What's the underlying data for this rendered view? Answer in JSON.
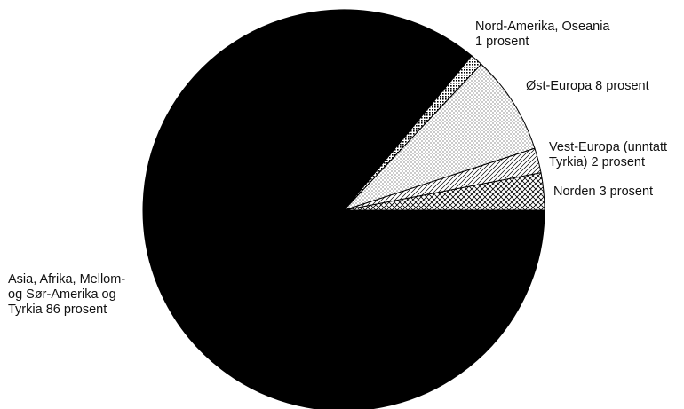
{
  "chart_data": {
    "type": "pie",
    "unit": "prosent",
    "slices": [
      {
        "name": "Norden",
        "value": 3,
        "pattern": "crosshatch",
        "label_lines": [
          "Norden 3 prosent"
        ]
      },
      {
        "name": "Vest-Europa (unntatt Tyrkia)",
        "value": 2,
        "pattern": "hatch",
        "label_lines": [
          "Vest-Europa (unntatt",
          "Tyrkia) 2 prosent"
        ]
      },
      {
        "name": "Øst-Europa",
        "value": 8,
        "pattern": "dots",
        "label_lines": [
          "Øst-Europa 8 prosent"
        ]
      },
      {
        "name": "Nord-Amerika, Oseania",
        "value": 1,
        "pattern": "dashes",
        "label_lines": [
          "Nord-Amerika, Oseania",
          "1 prosent"
        ]
      },
      {
        "name": "Asia, Afrika, Mellom- og Sør-Amerika og Tyrkia",
        "value": 86,
        "pattern": "solid",
        "label_lines": [
          "Asia, Afrika, Mellom-",
          "og Sør-Amerika og",
          "Tyrkia 86 prosent"
        ]
      }
    ],
    "colors": {
      "fill": "#000000",
      "background": "#ffffff",
      "stroke": "#000000"
    },
    "legend": "none",
    "title": ""
  }
}
